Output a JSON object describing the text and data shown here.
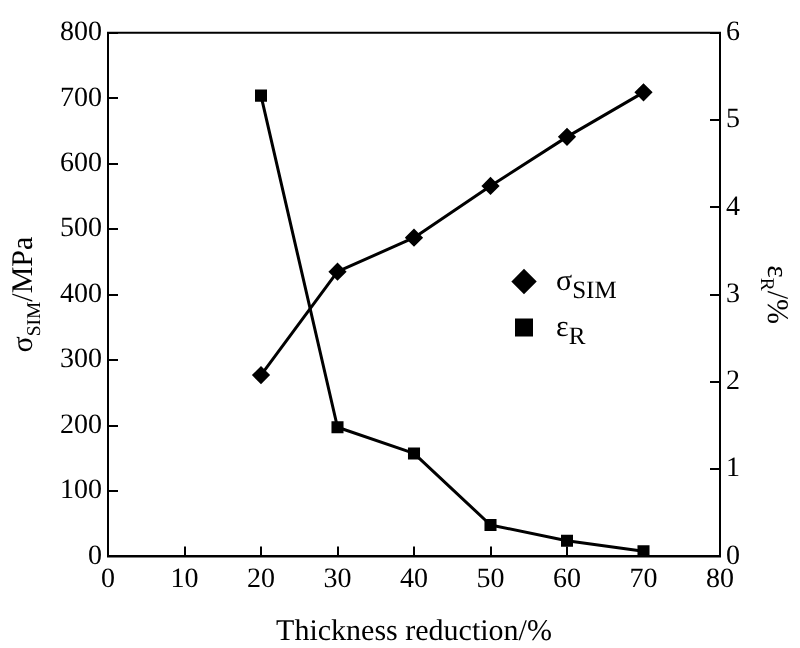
{
  "chart_data": {
    "type": "line",
    "xlabel": "Thickness reduction/%",
    "ylabel": "σ$_{SIM}$/MPa",
    "y2label": "ε$_{R}$/%",
    "x": [
      20,
      30,
      40,
      50,
      60,
      70
    ],
    "series": [
      {
        "name": "σ$_{SIM}$",
        "color": "#000000",
        "values": [
          277,
          435,
          487,
          566,
          641,
          709
        ],
        "marker": "diamond"
      },
      {
        "name": "ε$_{R}$",
        "color": "#000000",
        "values": [
          5.28,
          1.48,
          1.18,
          0.36,
          0.18,
          0.06
        ],
        "marker": "square",
        "axis": "y2"
      }
    ],
    "xlim": [
      0,
      80
    ],
    "xticks": [
      0,
      10,
      20,
      30,
      40,
      50,
      60,
      70,
      80
    ],
    "ylim": [
      0,
      800
    ],
    "yticks": [
      0,
      100,
      200,
      300,
      400,
      500,
      600,
      700,
      800
    ],
    "y2lim": [
      0,
      6
    ],
    "y2ticks": [
      0,
      1,
      2,
      3,
      4,
      5,
      6
    ],
    "grid": false,
    "legend": "right"
  }
}
